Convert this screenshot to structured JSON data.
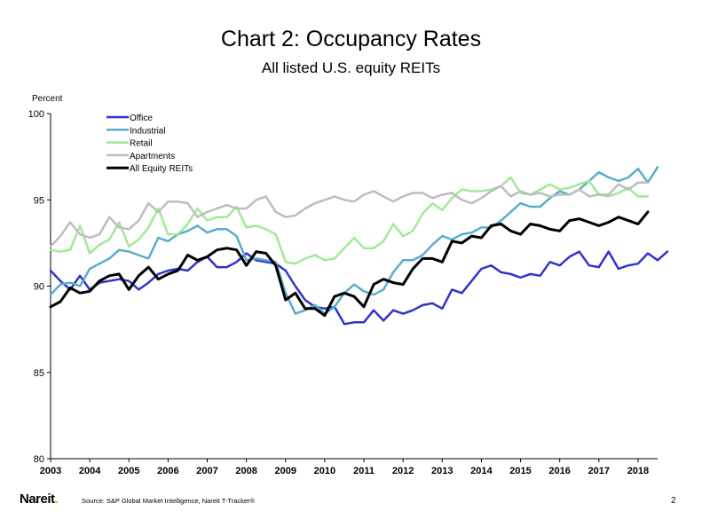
{
  "page": {
    "title": "Chart 2: Occupancy Rates",
    "subtitle": "All listed U.S. equity REITs",
    "y_unit_label": "Percent",
    "logo_text": "Nareit",
    "logo_dot": ".",
    "source": "Source: S&P Global Market Intelligence, Nareit T-Tracker®",
    "page_number": "2"
  },
  "chart_data": {
    "type": "line",
    "title": "Chart 2: Occupancy Rates",
    "subtitle": "All listed U.S. equity REITs",
    "ylabel": "Percent",
    "xlabel": "",
    "xlim": [
      2003,
      2018.5
    ],
    "ylim": [
      80,
      100
    ],
    "yticks": [
      80,
      85,
      90,
      95,
      100
    ],
    "xticks": [
      2003,
      2004,
      2005,
      2006,
      2007,
      2008,
      2009,
      2010,
      2011,
      2012,
      2013,
      2014,
      2015,
      2016,
      2017,
      2018
    ],
    "grid": false,
    "legend_position": "top-left",
    "x_start": 2003.0,
    "x_step": 0.25,
    "series": [
      {
        "name": "Office",
        "color": "#3333cc",
        "values": [
          90.9,
          90.3,
          89.8,
          90.6,
          89.8,
          90.2,
          90.3,
          90.4,
          90.3,
          89.8,
          90.2,
          90.7,
          90.9,
          91.0,
          90.9,
          91.4,
          91.7,
          91.1,
          91.1,
          91.4,
          91.9,
          91.5,
          91.4,
          91.3,
          90.9,
          90.0,
          89.2,
          88.8,
          88.7,
          88.8,
          87.8,
          87.9,
          87.9,
          88.6,
          88.0,
          88.6,
          88.4,
          88.6,
          88.9,
          89.0,
          88.7,
          89.8,
          89.6,
          90.3,
          91.0,
          91.2,
          90.8,
          90.7,
          90.5,
          90.7,
          90.6,
          91.4,
          91.2,
          91.7,
          92.0,
          91.2,
          91.1,
          92.0,
          91.0,
          91.2,
          91.3,
          91.9,
          91.5,
          92.0
        ]
      },
      {
        "name": "Industrial",
        "color": "#5aadc9",
        "values": [
          89.5,
          90.1,
          90.2,
          90.0,
          91.0,
          91.3,
          91.6,
          92.1,
          92.0,
          91.8,
          91.6,
          92.8,
          92.6,
          93.0,
          93.2,
          93.5,
          93.1,
          93.3,
          93.3,
          92.9,
          91.5,
          91.6,
          91.5,
          91.4,
          89.6,
          88.4,
          88.6,
          88.9,
          88.4,
          88.8,
          89.6,
          90.1,
          89.7,
          89.5,
          89.8,
          90.8,
          91.5,
          91.5,
          91.8,
          92.4,
          92.9,
          92.7,
          93.0,
          93.1,
          93.4,
          93.4,
          93.8,
          94.3,
          94.8,
          94.6,
          94.6,
          95.1,
          95.5,
          95.3,
          95.6,
          96.1,
          96.6,
          96.3,
          96.1,
          96.3,
          96.8,
          96.0,
          96.9
        ]
      },
      {
        "name": "Retail",
        "color": "#a3e89a",
        "values": [
          92.1,
          92.0,
          92.1,
          93.5,
          91.9,
          92.4,
          92.7,
          93.7,
          92.3,
          92.7,
          93.4,
          94.5,
          93.0,
          93.0,
          93.6,
          94.5,
          93.8,
          94.0,
          94.0,
          94.6,
          93.4,
          93.5,
          93.3,
          93.0,
          91.4,
          91.3,
          91.6,
          91.8,
          91.5,
          91.6,
          92.2,
          92.8,
          92.2,
          92.2,
          92.6,
          93.6,
          92.9,
          93.2,
          94.2,
          94.8,
          94.4,
          95.1,
          95.6,
          95.5,
          95.5,
          95.6,
          95.8,
          96.3,
          95.4,
          95.3,
          95.6,
          95.9,
          95.6,
          95.7,
          95.9,
          96.1,
          95.3,
          95.2,
          95.4,
          95.7,
          95.2,
          95.2
        ]
      },
      {
        "name": "Apartments",
        "color": "#bdbdbd",
        "values": [
          92.3,
          92.9,
          93.7,
          93.0,
          92.8,
          93.0,
          94.0,
          93.4,
          93.3,
          93.8,
          94.8,
          94.3,
          94.9,
          94.9,
          94.8,
          94.0,
          94.3,
          94.5,
          94.7,
          94.5,
          94.5,
          95.0,
          95.2,
          94.3,
          94.0,
          94.1,
          94.5,
          94.8,
          95.0,
          95.2,
          95.0,
          94.9,
          95.3,
          95.5,
          95.2,
          94.9,
          95.2,
          95.4,
          95.4,
          95.1,
          95.3,
          95.4,
          95.0,
          94.8,
          95.1,
          95.5,
          95.8,
          95.2,
          95.5,
          95.3,
          95.4,
          95.2,
          95.3,
          95.3,
          95.6,
          95.2,
          95.3,
          95.3,
          95.9,
          95.6,
          96.0,
          96.0
        ]
      },
      {
        "name": "All Equity REITs",
        "color": "#000000",
        "values": [
          88.8,
          89.1,
          89.9,
          89.6,
          89.7,
          90.3,
          90.6,
          90.7,
          89.8,
          90.6,
          91.1,
          90.4,
          90.7,
          90.9,
          91.8,
          91.5,
          91.7,
          92.1,
          92.2,
          92.1,
          91.2,
          92.0,
          91.9,
          91.2,
          89.2,
          89.6,
          88.7,
          88.7,
          88.3,
          89.4,
          89.6,
          89.4,
          88.8,
          90.1,
          90.4,
          90.2,
          90.1,
          91.0,
          91.6,
          91.6,
          91.4,
          92.6,
          92.5,
          92.9,
          92.8,
          93.5,
          93.6,
          93.2,
          93.0,
          93.6,
          93.5,
          93.3,
          93.2,
          93.8,
          93.9,
          93.7,
          93.5,
          93.7,
          94.0,
          93.8,
          93.6,
          94.3
        ]
      }
    ]
  }
}
